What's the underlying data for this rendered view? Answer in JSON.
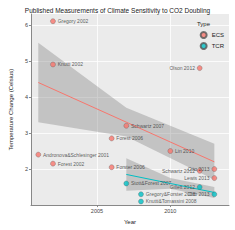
{
  "chart_data": {
    "type": "scatter",
    "title": "Published Measurements of Climate Sensitivity to CO2 Doubling",
    "x_label": "Year",
    "y_label": "Temperature Change (Celsius)",
    "legend_title": "Type",
    "legend": "top-right",
    "grid": true,
    "xlim": [
      2000.5,
      2014
    ],
    "xticks": [
      2005,
      2010
    ],
    "ylim": [
      1,
      6.3
    ],
    "yticks": [
      2,
      3,
      4,
      5,
      6
    ],
    "series": [
      {
        "name": "ECS",
        "color": "#f8766d",
        "x": [
          2001,
          2002,
          2002,
          2002,
          2006,
          2006,
          2007,
          2010,
          2012,
          2012,
          2013,
          2013
        ],
        "values": [
          2.4,
          6.1,
          4.9,
          2.15,
          2.05,
          2.85,
          3.2,
          2.5,
          4.8,
          1.95,
          1.75,
          2.0
        ],
        "labels": [
          "Andronova&Schlesinger 2001",
          "Gregory 2002",
          "Knutti 2002",
          "Forest 2002",
          "Forster 2006",
          "Forest 2006",
          "Schwartz 2007",
          "Lin 2010",
          "Olson 2012",
          "Schwartz 2012",
          "Lewis 2013",
          "Otto 2013"
        ],
        "fit": {
          "x": [
            2001,
            2007,
            2013
          ],
          "y": [
            4.4,
            3.3,
            2.2
          ],
          "lower": [
            3.3,
            2.9,
            1.7
          ],
          "upper": [
            5.5,
            3.7,
            2.7
          ]
        }
      },
      {
        "name": "TCR",
        "color": "#00bfc4",
        "x": [
          2007,
          2008,
          2008,
          2012,
          2013
        ],
        "values": [
          1.6,
          1.3,
          1.1,
          1.5,
          1.3
        ],
        "labels": [
          "Stott&Forest 2007",
          "Gregory&Forster 2008",
          "Knutti&Tomassini 2008",
          "Gillett 2012",
          "Otto 2013"
        ],
        "fit": {
          "x": [
            2007,
            2010,
            2013
          ],
          "y": [
            1.85,
            1.6,
            1.35
          ],
          "lower": [
            1.4,
            1.45,
            1.2
          ],
          "upper": [
            2.3,
            1.75,
            1.5
          ]
        }
      }
    ]
  }
}
